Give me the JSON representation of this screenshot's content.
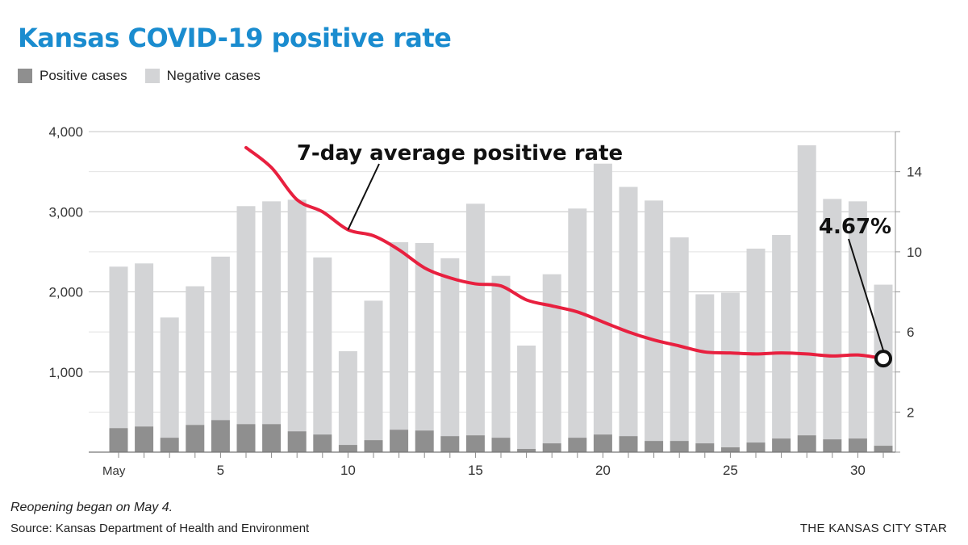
{
  "header": {
    "title": "Kansas COVID-19 positive rate"
  },
  "legend": [
    {
      "label": "Positive cases",
      "color": "#8f8f8f"
    },
    {
      "label": "Negative cases",
      "color": "#d3d4d6"
    }
  ],
  "footer": {
    "note": "Reopening began on May 4.",
    "source": "Source: Kansas Department of Health and Environment",
    "credit": "THE KANSAS CITY STAR"
  },
  "chart_data": {
    "type": "bar",
    "title": "Kansas COVID-19 positive rate",
    "stacked": true,
    "categories": [
      "1",
      "2",
      "3",
      "4",
      "5",
      "6",
      "7",
      "8",
      "9",
      "10",
      "11",
      "12",
      "13",
      "14",
      "15",
      "16",
      "17",
      "18",
      "19",
      "20",
      "21",
      "22",
      "23",
      "24",
      "25",
      "26",
      "27",
      "28",
      "29",
      "30",
      "31"
    ],
    "x_tick_labels": [
      {
        "day": 1,
        "label": "May"
      },
      {
        "day": 5,
        "label": "5"
      },
      {
        "day": 10,
        "label": "10"
      },
      {
        "day": 15,
        "label": "15"
      },
      {
        "day": 20,
        "label": "20"
      },
      {
        "day": 25,
        "label": "25"
      },
      {
        "day": 30,
        "label": "30"
      }
    ],
    "series": [
      {
        "name": "Positive cases",
        "color": "#8f8f8f",
        "values": [
          300,
          320,
          180,
          340,
          400,
          350,
          350,
          260,
          220,
          90,
          150,
          280,
          270,
          200,
          210,
          180,
          40,
          110,
          180,
          220,
          200,
          140,
          140,
          110,
          60,
          120,
          170,
          210,
          160,
          170,
          80
        ]
      },
      {
        "name": "Negative cases",
        "color": "#d3d4d6",
        "values": [
          2015,
          2035,
          1500,
          1730,
          2040,
          2720,
          2780,
          2890,
          2210,
          1170,
          1740,
          2340,
          2340,
          2220,
          2890,
          2020,
          1290,
          2110,
          2860,
          3380,
          3110,
          3000,
          2540,
          1860,
          1930,
          2420,
          2540,
          3620,
          3000,
          2960,
          2010
        ]
      }
    ],
    "left_axis": {
      "ylim": [
        0,
        4000
      ],
      "ticks": [
        1000,
        2000,
        3000,
        4000
      ],
      "tick_labels": [
        "1,000",
        "2,000",
        "3,000",
        "4,000"
      ]
    },
    "right_axis": {
      "ylim": [
        0,
        16
      ],
      "ticks": [
        2,
        6,
        10,
        14
      ],
      "tick_labels": [
        "2",
        "6",
        "10",
        "14"
      ]
    },
    "line_series": {
      "name": "7-day average positive rate",
      "color": "#e8203f",
      "axis": "right",
      "points": [
        [
          6,
          15.2
        ],
        [
          7,
          14.2
        ],
        [
          8,
          12.6
        ],
        [
          9,
          12.0
        ],
        [
          10,
          11.1
        ],
        [
          11,
          10.8
        ],
        [
          12,
          10.1
        ],
        [
          13,
          9.2
        ],
        [
          14,
          8.7
        ],
        [
          15,
          8.4
        ],
        [
          16,
          8.3
        ],
        [
          17,
          7.6
        ],
        [
          18,
          7.3
        ],
        [
          19,
          7.0
        ],
        [
          20,
          6.5
        ],
        [
          21,
          6.0
        ],
        [
          22,
          5.6
        ],
        [
          23,
          5.3
        ],
        [
          24,
          5.0
        ],
        [
          25,
          4.95
        ],
        [
          26,
          4.9
        ],
        [
          27,
          4.95
        ],
        [
          28,
          4.9
        ],
        [
          29,
          4.8
        ],
        [
          30,
          4.85
        ],
        [
          31,
          4.67
        ]
      ]
    },
    "annotations": [
      {
        "text": "7-day average positive rate"
      },
      {
        "text": "4.67%"
      }
    ],
    "grid": true
  }
}
